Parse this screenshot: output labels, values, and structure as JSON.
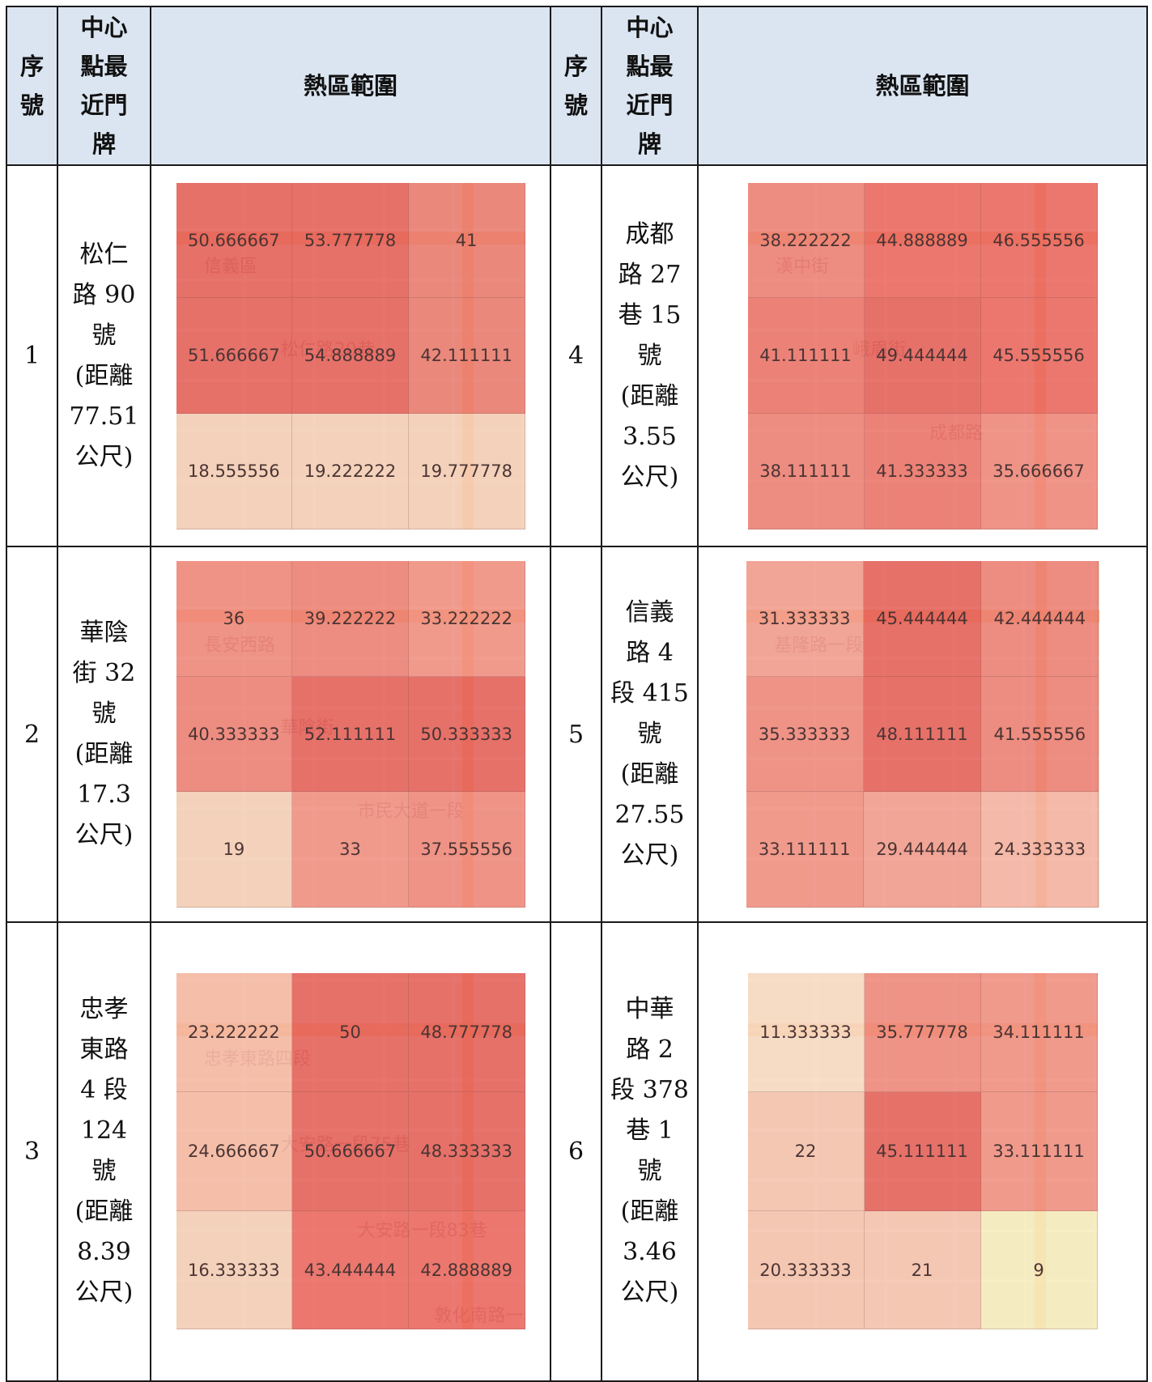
{
  "header": {
    "seq": "序號",
    "addr": "中心點最近門牌",
    "range": "熱區範圍"
  },
  "rows": [
    {
      "left": {
        "seq": "1",
        "addr": [
          "松仁",
          "路 90",
          "號",
          "(距離",
          "77.51",
          "公尺)"
        ],
        "heatmap": [
          [
            "50.666667",
            "53.777778",
            "41"
          ],
          [
            "51.666667",
            "54.888889",
            "42.111111"
          ],
          [
            "18.555556",
            "19.222222",
            "19.777778"
          ]
        ],
        "colors": [
          [
            "#e35a55",
            "#e35a55",
            "#e8766b"
          ],
          [
            "#e35a55",
            "#e35a55",
            "#e8766b"
          ],
          [
            "#f4d0b8",
            "#f4d0b8",
            "#f4d0b8"
          ]
        ],
        "map_labels": [
          "信義區",
          "松仁路20巷"
        ]
      },
      "right": {
        "seq": "4",
        "addr": [
          "成都",
          "路 27",
          "巷 15",
          "號",
          "(距離",
          "3.55",
          "公尺)"
        ],
        "heatmap": [
          [
            "38.222222",
            "44.888889",
            "46.555556"
          ],
          [
            "41.111111",
            "49.444444",
            "45.555556"
          ],
          [
            "38.111111",
            "41.333333",
            "35.666667"
          ]
        ],
        "colors": [
          [
            "#ec7b72",
            "#e9615b",
            "#e9615b"
          ],
          [
            "#ea6f67",
            "#e35a55",
            "#e9615b"
          ],
          [
            "#ec7b72",
            "#ea6f67",
            "#ee8479"
          ]
        ],
        "map_labels": [
          "漢中街",
          "峨眉街",
          "成都路"
        ]
      }
    },
    {
      "left": {
        "seq": "2",
        "addr": [
          "華陰",
          "街 32",
          "號",
          "(距離",
          "17.3",
          "公尺)"
        ],
        "heatmap": [
          [
            "36",
            "39.222222",
            "33.222222"
          ],
          [
            "40.333333",
            "52.111111",
            "50.333333"
          ],
          [
            "19",
            "33",
            "37.555556"
          ]
        ],
        "colors": [
          [
            "#ee8479",
            "#ec7b72",
            "#ef8c80"
          ],
          [
            "#ec7b72",
            "#e35a55",
            "#e35a55"
          ],
          [
            "#f4d0b8",
            "#ef8c80",
            "#ee8479"
          ]
        ],
        "map_labels": [
          "長安西路",
          "華陰街",
          "市民大道一段"
        ]
      },
      "right": {
        "seq": "5",
        "addr": [
          "信義",
          "路 4",
          "段 415",
          "號",
          "(距離",
          "27.55",
          "公尺)"
        ],
        "heatmap": [
          [
            "31.333333",
            "45.444444",
            "42.444444"
          ],
          [
            "35.333333",
            "48.111111",
            "41.555556"
          ],
          [
            "33.111111",
            "29.444444",
            "24.333333"
          ]
        ],
        "colors": [
          [
            "#f09a8c",
            "#e35a55",
            "#ec7b72"
          ],
          [
            "#ee8479",
            "#e35a55",
            "#ec7b72"
          ],
          [
            "#ef8c80",
            "#f09a8c",
            "#f4b2a2"
          ]
        ],
        "map_labels": [
          "基隆路一段"
        ]
      }
    },
    {
      "left": {
        "seq": "3",
        "addr": [
          "忠孝",
          "東路",
          "4 段",
          "124",
          "號",
          "(距離",
          "8.39",
          "公尺)"
        ],
        "heatmap": [
          [
            "23.222222",
            "50",
            "48.777778"
          ],
          [
            "24.666667",
            "50.666667",
            "48.333333"
          ],
          [
            "16.333333",
            "43.444444",
            "42.888889"
          ]
        ],
        "colors": [
          [
            "#f4b8a4",
            "#e35a55",
            "#e35a55"
          ],
          [
            "#f4b8a4",
            "#e35a55",
            "#e35a55"
          ],
          [
            "#f4d0b8",
            "#e9615b",
            "#e9615b"
          ]
        ],
        "map_labels": [
          "忠孝東路四段",
          "大安路一段75巷",
          "大安路一段83巷",
          "敦化南路一段"
        ]
      },
      "right": {
        "seq": "6",
        "addr": [
          "中華",
          "路 2",
          "段 378",
          "巷 1",
          "號",
          "(距離",
          "3.46",
          "公尺)"
        ],
        "heatmap": [
          [
            "11.333333",
            "35.777778",
            "34.111111"
          ],
          [
            "22",
            "45.111111",
            "33.111111"
          ],
          [
            "20.333333",
            "21",
            "9"
          ]
        ],
        "colors": [
          [
            "#f6dcc6",
            "#ee8479",
            "#ef8c80"
          ],
          [
            "#f4c3ae",
            "#e35a55",
            "#ef8c80"
          ],
          [
            "#f4c3ae",
            "#f4c3ae",
            "#f5efc0"
          ]
        ],
        "map_labels": []
      }
    }
  ]
}
